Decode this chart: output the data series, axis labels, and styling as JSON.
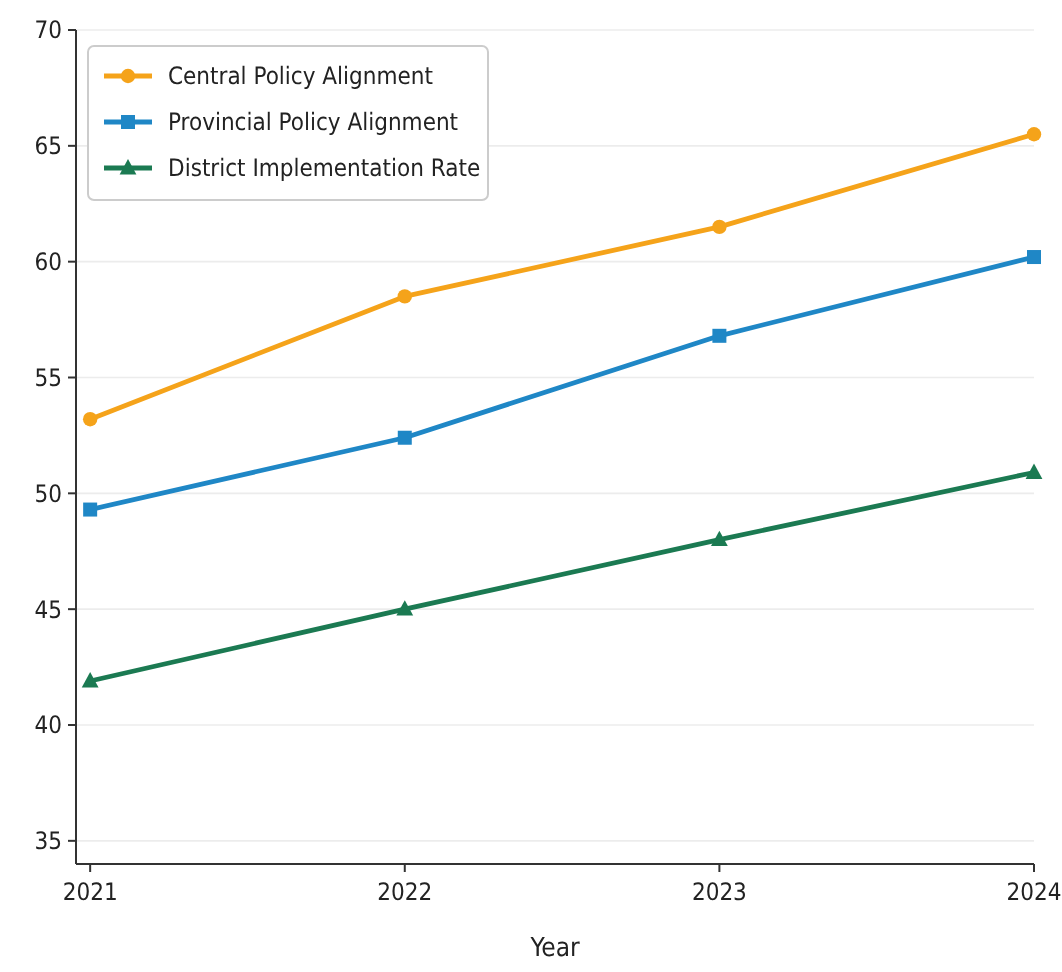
{
  "chart_data": {
    "type": "line",
    "xlabel": "Year",
    "x": [
      2021,
      2022,
      2023,
      2024
    ],
    "xlim": [
      2020.955,
      2024
    ],
    "xticks": [
      2021,
      2022,
      2023,
      2024
    ],
    "ylim": [
      34,
      70
    ],
    "yticks": [
      35,
      40,
      45,
      50,
      55,
      60,
      65,
      70
    ],
    "grid": "y",
    "legend": "top left",
    "line_style": "solid",
    "series": [
      {
        "name": "Central Policy Alignment",
        "color": "#f5a31a",
        "marker": "circle",
        "values": [
          53.2,
          58.5,
          61.5,
          65.5
        ]
      },
      {
        "name": "Provincial Policy Alignment",
        "color": "#1f87c6",
        "marker": "square",
        "values": [
          49.3,
          52.4,
          56.8,
          60.2
        ]
      },
      {
        "name": "District Implementation Rate",
        "color": "#1b7a52",
        "marker": "triangle",
        "values": [
          41.9,
          45,
          48,
          50.9
        ]
      }
    ]
  }
}
